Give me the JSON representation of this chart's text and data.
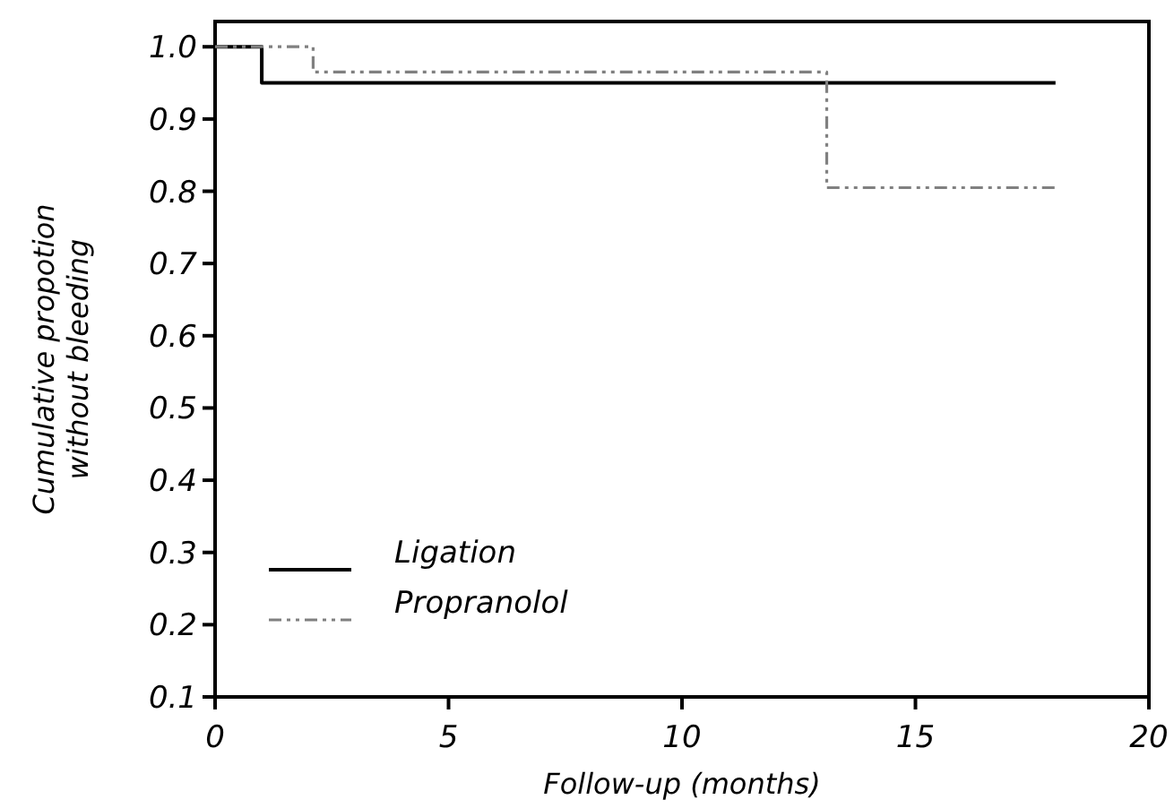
{
  "chart_data": {
    "type": "step",
    "xlabel": "Follow-up (months)",
    "ylabel": "Cumulative propotion\nwithout bleeding",
    "xlim": [
      0,
      20
    ],
    "ylim": [
      0.1,
      1.035
    ],
    "xticks": [
      0,
      5,
      10,
      15,
      20
    ],
    "yticks": [
      {
        "value": 0.1,
        "label": "0.1"
      },
      {
        "value": 0.2,
        "label": "0.2"
      },
      {
        "value": 0.3,
        "label": "0.3"
      },
      {
        "value": 0.4,
        "label": "0.4"
      },
      {
        "value": 0.5,
        "label": "0.5"
      },
      {
        "value": 0.6,
        "label": "0.6"
      },
      {
        "value": 0.7,
        "label": "0.7"
      },
      {
        "value": 0.8,
        "label": "0.8"
      },
      {
        "value": 0.9,
        "label": "0.9"
      },
      {
        "value": 1.0,
        "label": "1.0"
      }
    ],
    "legend": "bottom left",
    "grid": false,
    "series": [
      {
        "name": "Ligation",
        "color": "#000000",
        "line_style": "solid",
        "x": [
          0,
          1,
          18
        ],
        "values": [
          1.0,
          0.95,
          0.95
        ]
      },
      {
        "name": "Propranolol",
        "color": "#808080",
        "line_style": "dashed",
        "x": [
          0,
          2.1,
          13.1,
          18
        ],
        "values": [
          1.0,
          0.965,
          0.805,
          0.805
        ]
      }
    ]
  }
}
